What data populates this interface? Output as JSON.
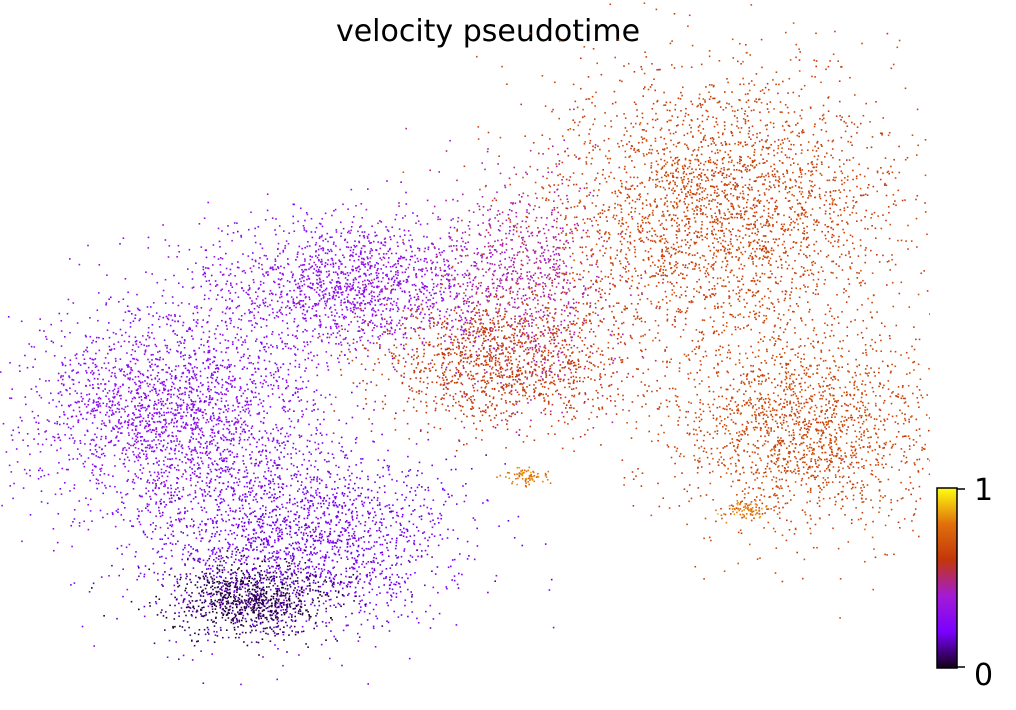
{
  "chart_data": {
    "type": "scatter",
    "title": "velocity pseudotime",
    "xlabel": "",
    "ylabel": "",
    "axes_visible": false,
    "grid": false,
    "colormap": {
      "name": "gnuplot",
      "colors": [
        "#140016",
        "#7a00ff",
        "#a31bd6",
        "#c2360a",
        "#e0700c",
        "#ffff10"
      ],
      "min": 0,
      "max": 1,
      "ticks": [
        "0",
        "1"
      ],
      "placement": "bottom-right"
    },
    "clusters": [
      {
        "region": "upper-left lobe",
        "value": 0.3
      },
      {
        "region": "left lobe",
        "value": 0.28
      },
      {
        "region": "lower-left lobe",
        "value": 0.2
      },
      {
        "region": "bottom-left dense core",
        "value": 0.05
      },
      {
        "region": "central bridge",
        "value": 0.45
      },
      {
        "region": "central-right lobe",
        "value": 0.62
      },
      {
        "region": "upper-right lobe",
        "value": 0.65
      },
      {
        "region": "lower-right lobe",
        "value": 0.66
      },
      {
        "region": "small tip near center",
        "value": 0.8
      },
      {
        "region": "small tip at lower right",
        "value": 0.82
      }
    ]
  }
}
